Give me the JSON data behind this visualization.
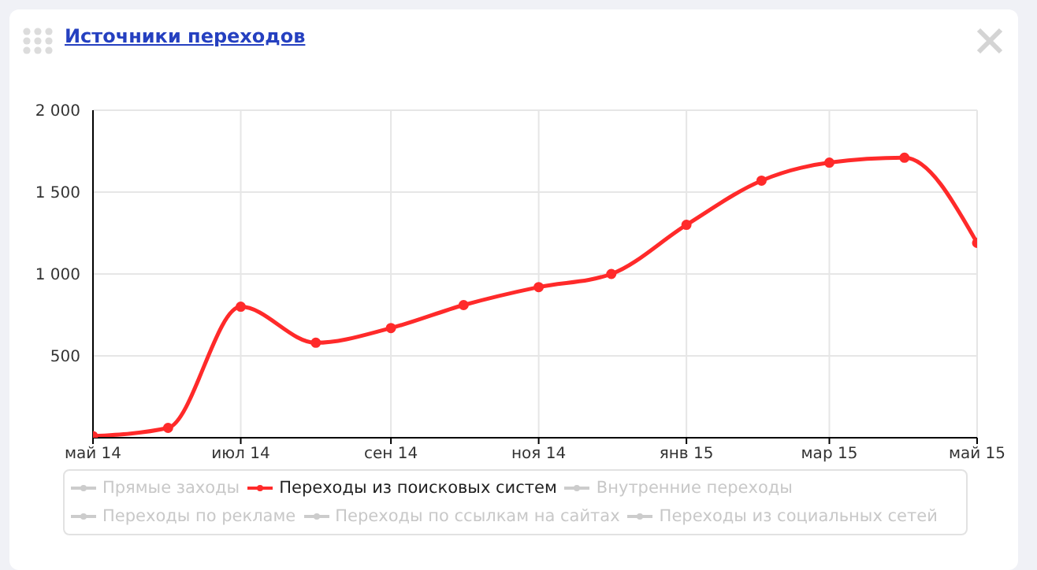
{
  "chart_data": {
    "type": "line",
    "title": "Источники переходов",
    "x": [
      "2014-05",
      "2014-06",
      "2014-07",
      "2014-08",
      "2014-09",
      "2014-10",
      "2014-11",
      "2014-12",
      "2015-01",
      "2015-02",
      "2015-03",
      "2015-04",
      "2015-05"
    ],
    "xlim": [
      "2014-05",
      "2015-05"
    ],
    "xticks": [
      {
        "value": "2014-05",
        "label": "май 14"
      },
      {
        "value": "2014-07",
        "label": "июл 14"
      },
      {
        "value": "2014-09",
        "label": "сен 14"
      },
      {
        "value": "2014-11",
        "label": "ноя 14"
      },
      {
        "value": "2015-01",
        "label": "янв 15"
      },
      {
        "value": "2015-03",
        "label": "мар 15"
      },
      {
        "value": "2015-05",
        "label": "май 15"
      }
    ],
    "ylim": [
      0,
      2000
    ],
    "yticks": [
      {
        "value": 500,
        "label": "500"
      },
      {
        "value": 1000,
        "label": "1 000"
      },
      {
        "value": 1500,
        "label": "1 500"
      },
      {
        "value": 2000,
        "label": "2 000"
      }
    ],
    "series": [
      {
        "name": "Прямые заходы",
        "color": "#cccccc",
        "values": [
          null,
          null,
          null,
          null,
          null,
          null,
          null,
          null,
          null,
          null,
          null,
          null,
          null
        ]
      },
      {
        "name": "Переходы из поисковых систем",
        "color": "#ff2a2a",
        "values": [
          10,
          60,
          800,
          580,
          670,
          810,
          920,
          1000,
          1300,
          1570,
          1680,
          1710,
          1190
        ]
      },
      {
        "name": "Внутренние переходы",
        "color": "#cccccc",
        "values": [
          null,
          null,
          null,
          null,
          null,
          null,
          null,
          null,
          null,
          null,
          null,
          null,
          null
        ]
      },
      {
        "name": "Переходы по рекламе",
        "color": "#cccccc",
        "values": [
          null,
          null,
          null,
          null,
          null,
          null,
          null,
          null,
          null,
          null,
          null,
          null,
          null
        ]
      },
      {
        "name": "Переходы по ссылкам на сайтах",
        "color": "#cccccc",
        "values": [
          null,
          null,
          null,
          null,
          null,
          null,
          null,
          null,
          null,
          null,
          null,
          null,
          null
        ]
      },
      {
        "name": "Переходы из социальных сетей",
        "color": "#cccccc",
        "values": [
          null,
          null,
          null,
          null,
          null,
          null,
          null,
          null,
          null,
          null,
          null,
          null,
          null
        ]
      }
    ],
    "grid": true,
    "legend": "bottom",
    "marker": "circle",
    "line_style": "solid"
  }
}
